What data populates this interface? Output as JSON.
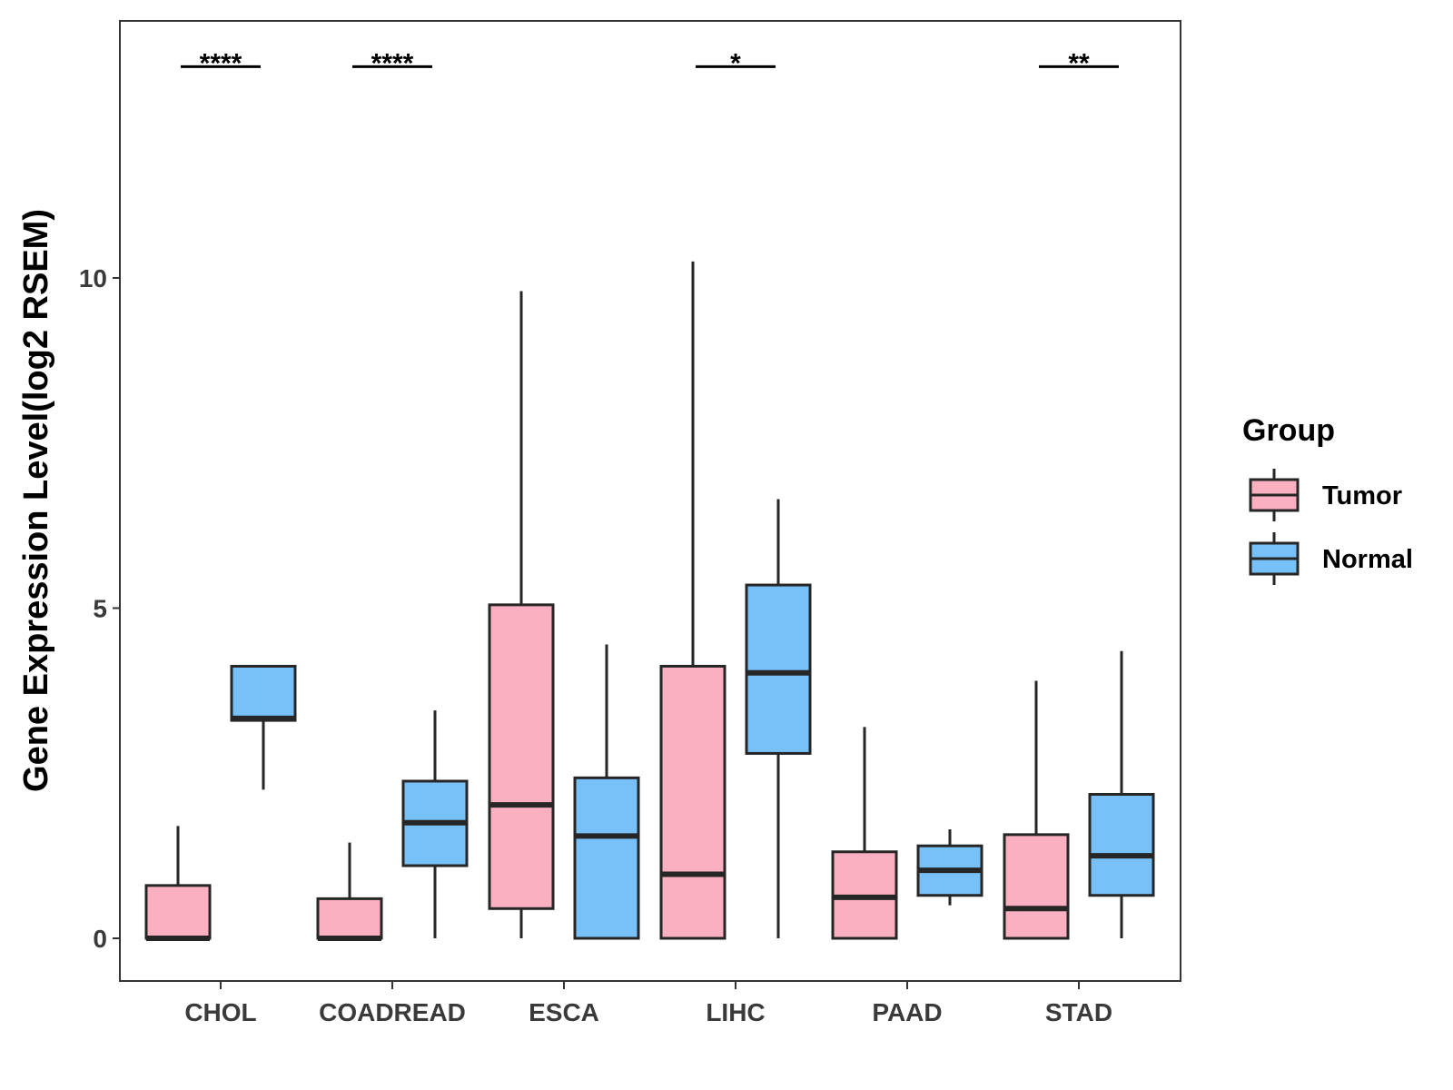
{
  "chart_data": {
    "type": "boxplot",
    "title": "",
    "xlabel": "",
    "ylabel": "Gene Expression Level(log2 RSEM)",
    "ylim": [
      -0.65,
      13.9
    ],
    "yticks": [
      0,
      5,
      10
    ],
    "categories": [
      "CHOL",
      "COADREAD",
      "ESCA",
      "LIHC",
      "PAAD",
      "STAD"
    ],
    "legend": {
      "title": "Group",
      "position": "right",
      "entries": [
        "Tumor",
        "Normal"
      ]
    },
    "colors": {
      "Tumor": "#FBB0C1",
      "Normal": "#77C1F8",
      "outline": "#262626"
    },
    "series": [
      {
        "name": "Tumor",
        "boxes": [
          {
            "whisker_low": 0.0,
            "q1": 0.0,
            "median": 0.0,
            "q3": 0.8,
            "whisker_high": 1.7
          },
          {
            "whisker_low": 0.0,
            "q1": 0.0,
            "median": 0.0,
            "q3": 0.6,
            "whisker_high": 1.45
          },
          {
            "whisker_low": 0.0,
            "q1": 0.45,
            "median": 2.02,
            "q3": 5.05,
            "whisker_high": 9.8
          },
          {
            "whisker_low": 0.0,
            "q1": 0.0,
            "median": 0.97,
            "q3": 4.12,
            "whisker_high": 10.25
          },
          {
            "whisker_low": 0.0,
            "q1": 0.0,
            "median": 0.62,
            "q3": 1.31,
            "whisker_high": 3.2
          },
          {
            "whisker_low": 0.0,
            "q1": 0.0,
            "median": 0.45,
            "q3": 1.57,
            "whisker_high": 3.9
          }
        ]
      },
      {
        "name": "Normal",
        "boxes": [
          {
            "whisker_low": 2.25,
            "q1": 3.3,
            "median": 3.33,
            "q3": 4.12,
            "whisker_high": 4.12
          },
          {
            "whisker_low": 0.0,
            "q1": 1.1,
            "median": 1.75,
            "q3": 2.38,
            "whisker_high": 3.45
          },
          {
            "whisker_low": 0.0,
            "q1": 0.0,
            "median": 1.55,
            "q3": 2.43,
            "whisker_high": 4.45
          },
          {
            "whisker_low": 0.0,
            "q1": 2.8,
            "median": 4.02,
            "q3": 5.35,
            "whisker_high": 6.65
          },
          {
            "whisker_low": 0.5,
            "q1": 0.65,
            "median": 1.03,
            "q3": 1.4,
            "whisker_high": 1.65
          },
          {
            "whisker_low": 0.0,
            "q1": 0.65,
            "median": 1.25,
            "q3": 2.18,
            "whisker_high": 4.35
          }
        ]
      }
    ],
    "annotations": [
      {
        "category": "CHOL",
        "label": "****",
        "y": 13.2
      },
      {
        "category": "COADREAD",
        "label": "****",
        "y": 13.2
      },
      {
        "category": "LIHC",
        "label": "*",
        "y": 13.2
      },
      {
        "category": "STAD",
        "label": "**",
        "y": 13.2
      }
    ]
  }
}
